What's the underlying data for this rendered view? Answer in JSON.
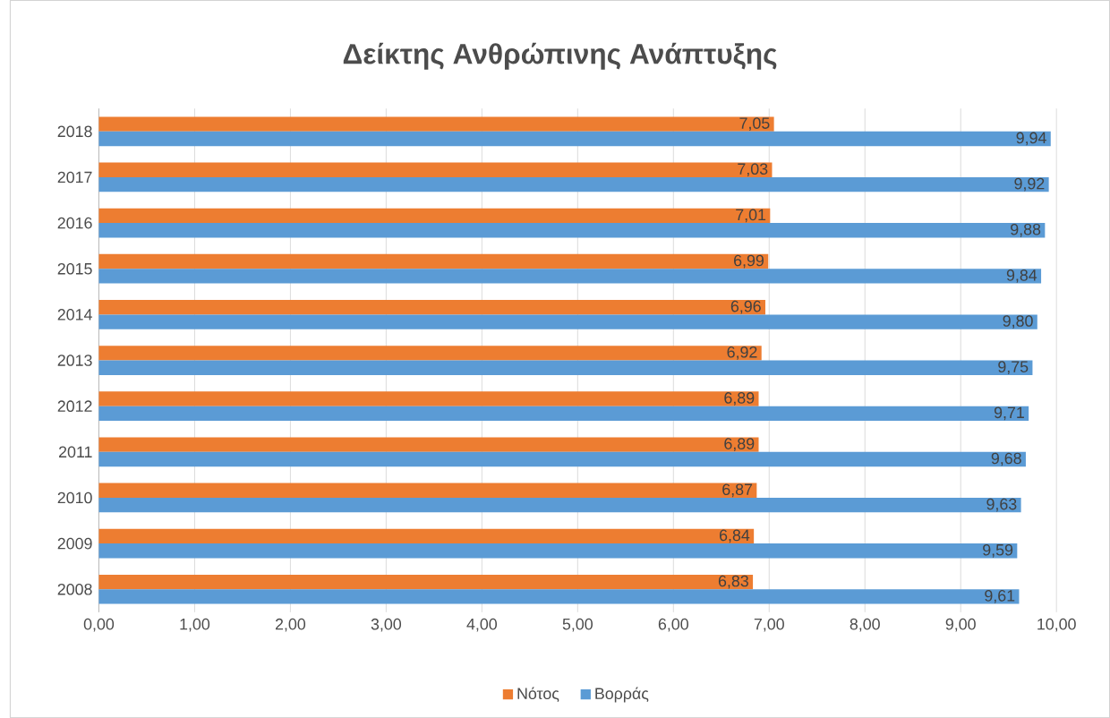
{
  "chart_data": {
    "type": "bar",
    "orientation": "horizontal",
    "title": "Δείκτης Ανθρώπινης Ανάπτυξης",
    "categories": [
      "2018",
      "2017",
      "2016",
      "2015",
      "2014",
      "2013",
      "2012",
      "2011",
      "2010",
      "2009",
      "2008"
    ],
    "series": [
      {
        "name": "Νότος",
        "color": "#ed7d31",
        "values": [
          7.05,
          7.03,
          7.01,
          6.99,
          6.96,
          6.92,
          6.89,
          6.89,
          6.87,
          6.84,
          6.83
        ],
        "value_labels": [
          "7,05",
          "7,03",
          "7,01",
          "6,99",
          "6,96",
          "6,92",
          "6,89",
          "6,89",
          "6,87",
          "6,84",
          "6,83"
        ]
      },
      {
        "name": "Βορράς",
        "color": "#5b9bd5",
        "values": [
          9.94,
          9.92,
          9.88,
          9.84,
          9.8,
          9.75,
          9.71,
          9.68,
          9.63,
          9.59,
          9.61
        ],
        "value_labels": [
          "9,94",
          "9,92",
          "9,88",
          "9,84",
          "9,80",
          "9,75",
          "9,71",
          "9,68",
          "9,63",
          "9,59",
          "9,61"
        ]
      }
    ],
    "xlim": [
      0,
      10
    ],
    "xticks": [
      {
        "value": 0,
        "label": "0,00"
      },
      {
        "value": 1,
        "label": "1,00"
      },
      {
        "value": 2,
        "label": "2,00"
      },
      {
        "value": 3,
        "label": "3,00"
      },
      {
        "value": 4,
        "label": "4,00"
      },
      {
        "value": 5,
        "label": "5,00"
      },
      {
        "value": 6,
        "label": "6,00"
      },
      {
        "value": 7,
        "label": "7,00"
      },
      {
        "value": 8,
        "label": "8,00"
      },
      {
        "value": 9,
        "label": "9,00"
      },
      {
        "value": 10,
        "label": "10,00"
      }
    ],
    "grid": "x",
    "legend": "bottom"
  }
}
